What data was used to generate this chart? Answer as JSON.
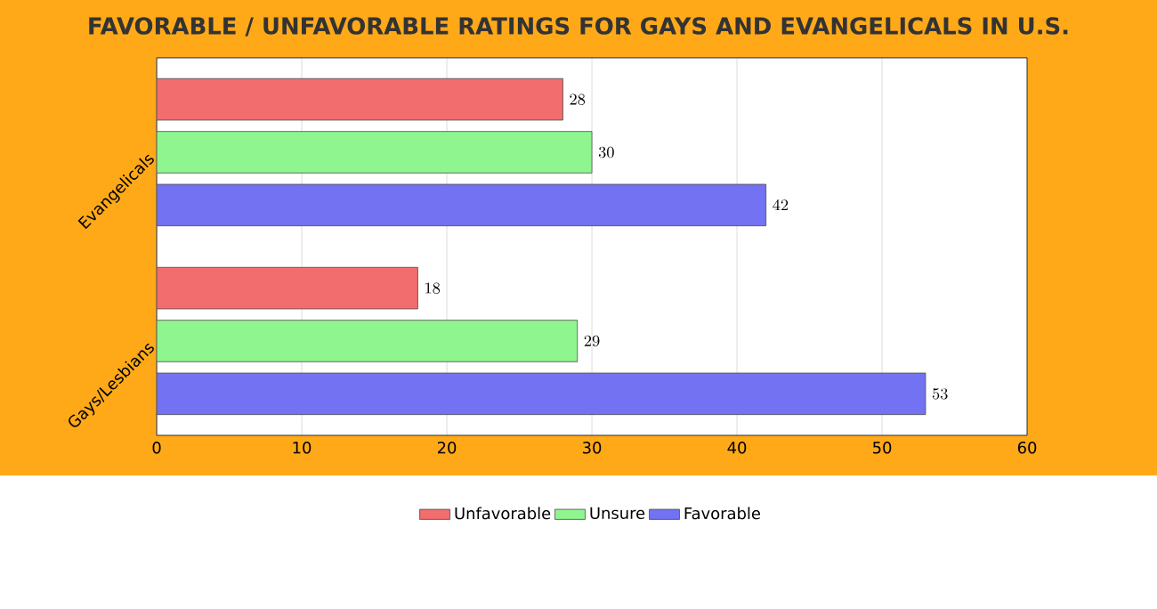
{
  "chart_data": {
    "type": "bar",
    "orientation": "horizontal",
    "title": "FAVORABLE / UNFAVORABLE RATINGS FOR GAYS AND EVANGELICALS IN U.S.",
    "categories": [
      "Evangelicals",
      "Gays/Lesbians"
    ],
    "series": [
      {
        "name": "Unfavorable",
        "color": "#f26d6d",
        "values": [
          28,
          18
        ]
      },
      {
        "name": "Unsure",
        "color": "#8ff58f",
        "values": [
          30,
          29
        ]
      },
      {
        "name": "Favorable",
        "color": "#7272f2",
        "values": [
          42,
          53
        ]
      }
    ],
    "xlim": [
      0,
      60
    ],
    "xticks": [
      0,
      10,
      20,
      30,
      40,
      50,
      60
    ],
    "grid": "x",
    "legend": "bottom",
    "data_labels": true
  }
}
